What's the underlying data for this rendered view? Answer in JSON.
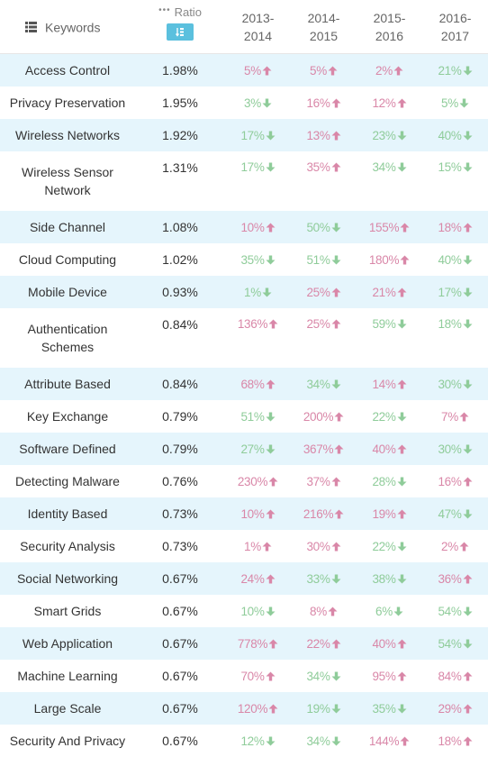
{
  "header": {
    "keywords_label": "Keywords",
    "ratio_label": "Ratio",
    "ratio_dots": "•••",
    "sort_icon": "sort-icon",
    "years": [
      "2013-\n2014",
      "2014-\n2015",
      "2015-\n2016",
      "2016-\n2017"
    ]
  },
  "colors": {
    "up": "#d987a8",
    "down": "#8fcc9a",
    "accent": "#5bc0de",
    "row_alt": "#e5f5fc"
  },
  "rows": [
    {
      "keyword": "Access Control",
      "ratio": "1.98%",
      "changes": [
        {
          "v": "5%",
          "d": "up"
        },
        {
          "v": "5%",
          "d": "up"
        },
        {
          "v": "2%",
          "d": "up"
        },
        {
          "v": "21%",
          "d": "down"
        }
      ]
    },
    {
      "keyword": "Privacy Preservation",
      "ratio": "1.95%",
      "changes": [
        {
          "v": "3%",
          "d": "down"
        },
        {
          "v": "16%",
          "d": "up"
        },
        {
          "v": "12%",
          "d": "up"
        },
        {
          "v": "5%",
          "d": "down"
        }
      ]
    },
    {
      "keyword": "Wireless Networks",
      "ratio": "1.92%",
      "changes": [
        {
          "v": "17%",
          "d": "down"
        },
        {
          "v": "13%",
          "d": "up"
        },
        {
          "v": "23%",
          "d": "down"
        },
        {
          "v": "40%",
          "d": "down"
        }
      ]
    },
    {
      "keyword": "Wireless Sensor Network",
      "ratio": "1.31%",
      "changes": [
        {
          "v": "17%",
          "d": "down"
        },
        {
          "v": "35%",
          "d": "up"
        },
        {
          "v": "34%",
          "d": "down"
        },
        {
          "v": "15%",
          "d": "down"
        }
      ]
    },
    {
      "keyword": "Side Channel",
      "ratio": "1.08%",
      "changes": [
        {
          "v": "10%",
          "d": "up"
        },
        {
          "v": "50%",
          "d": "down"
        },
        {
          "v": "155%",
          "d": "up"
        },
        {
          "v": "18%",
          "d": "up"
        }
      ]
    },
    {
      "keyword": "Cloud Computing",
      "ratio": "1.02%",
      "changes": [
        {
          "v": "35%",
          "d": "down"
        },
        {
          "v": "51%",
          "d": "down"
        },
        {
          "v": "180%",
          "d": "up"
        },
        {
          "v": "40%",
          "d": "down"
        }
      ]
    },
    {
      "keyword": "Mobile Device",
      "ratio": "0.93%",
      "changes": [
        {
          "v": "1%",
          "d": "down"
        },
        {
          "v": "25%",
          "d": "up"
        },
        {
          "v": "21%",
          "d": "up"
        },
        {
          "v": "17%",
          "d": "down"
        }
      ]
    },
    {
      "keyword": "Authentication Schemes",
      "ratio": "0.84%",
      "changes": [
        {
          "v": "136%",
          "d": "up"
        },
        {
          "v": "25%",
          "d": "up"
        },
        {
          "v": "59%",
          "d": "down"
        },
        {
          "v": "18%",
          "d": "down"
        }
      ]
    },
    {
      "keyword": "Attribute Based",
      "ratio": "0.84%",
      "changes": [
        {
          "v": "68%",
          "d": "up"
        },
        {
          "v": "34%",
          "d": "down"
        },
        {
          "v": "14%",
          "d": "up"
        },
        {
          "v": "30%",
          "d": "down"
        }
      ]
    },
    {
      "keyword": "Key Exchange",
      "ratio": "0.79%",
      "changes": [
        {
          "v": "51%",
          "d": "down"
        },
        {
          "v": "200%",
          "d": "up"
        },
        {
          "v": "22%",
          "d": "down"
        },
        {
          "v": "7%",
          "d": "up"
        }
      ]
    },
    {
      "keyword": "Software Defined",
      "ratio": "0.79%",
      "changes": [
        {
          "v": "27%",
          "d": "down"
        },
        {
          "v": "367%",
          "d": "up"
        },
        {
          "v": "40%",
          "d": "up"
        },
        {
          "v": "30%",
          "d": "down"
        }
      ]
    },
    {
      "keyword": "Detecting Malware",
      "ratio": "0.76%",
      "changes": [
        {
          "v": "230%",
          "d": "up"
        },
        {
          "v": "37%",
          "d": "up"
        },
        {
          "v": "28%",
          "d": "down"
        },
        {
          "v": "16%",
          "d": "up"
        }
      ]
    },
    {
      "keyword": "Identity Based",
      "ratio": "0.73%",
      "changes": [
        {
          "v": "10%",
          "d": "up"
        },
        {
          "v": "216%",
          "d": "up"
        },
        {
          "v": "19%",
          "d": "up"
        },
        {
          "v": "47%",
          "d": "down"
        }
      ]
    },
    {
      "keyword": "Security Analysis",
      "ratio": "0.73%",
      "changes": [
        {
          "v": "1%",
          "d": "up"
        },
        {
          "v": "30%",
          "d": "up"
        },
        {
          "v": "22%",
          "d": "down"
        },
        {
          "v": "2%",
          "d": "up"
        }
      ]
    },
    {
      "keyword": "Social Networking",
      "ratio": "0.67%",
      "changes": [
        {
          "v": "24%",
          "d": "up"
        },
        {
          "v": "33%",
          "d": "down"
        },
        {
          "v": "38%",
          "d": "down"
        },
        {
          "v": "36%",
          "d": "up"
        }
      ]
    },
    {
      "keyword": "Smart Grids",
      "ratio": "0.67%",
      "changes": [
        {
          "v": "10%",
          "d": "down"
        },
        {
          "v": "8%",
          "d": "up"
        },
        {
          "v": "6%",
          "d": "down"
        },
        {
          "v": "54%",
          "d": "down"
        }
      ]
    },
    {
      "keyword": "Web Application",
      "ratio": "0.67%",
      "changes": [
        {
          "v": "778%",
          "d": "up"
        },
        {
          "v": "22%",
          "d": "up"
        },
        {
          "v": "40%",
          "d": "up"
        },
        {
          "v": "54%",
          "d": "down"
        }
      ]
    },
    {
      "keyword": "Machine Learning",
      "ratio": "0.67%",
      "changes": [
        {
          "v": "70%",
          "d": "up"
        },
        {
          "v": "34%",
          "d": "down"
        },
        {
          "v": "95%",
          "d": "up"
        },
        {
          "v": "84%",
          "d": "up"
        }
      ]
    },
    {
      "keyword": "Large Scale",
      "ratio": "0.67%",
      "changes": [
        {
          "v": "120%",
          "d": "up"
        },
        {
          "v": "19%",
          "d": "down"
        },
        {
          "v": "35%",
          "d": "down"
        },
        {
          "v": "29%",
          "d": "up"
        }
      ]
    },
    {
      "keyword": "Security And Privacy",
      "ratio": "0.67%",
      "changes": [
        {
          "v": "12%",
          "d": "down"
        },
        {
          "v": "34%",
          "d": "down"
        },
        {
          "v": "144%",
          "d": "up"
        },
        {
          "v": "18%",
          "d": "up"
        }
      ]
    }
  ]
}
